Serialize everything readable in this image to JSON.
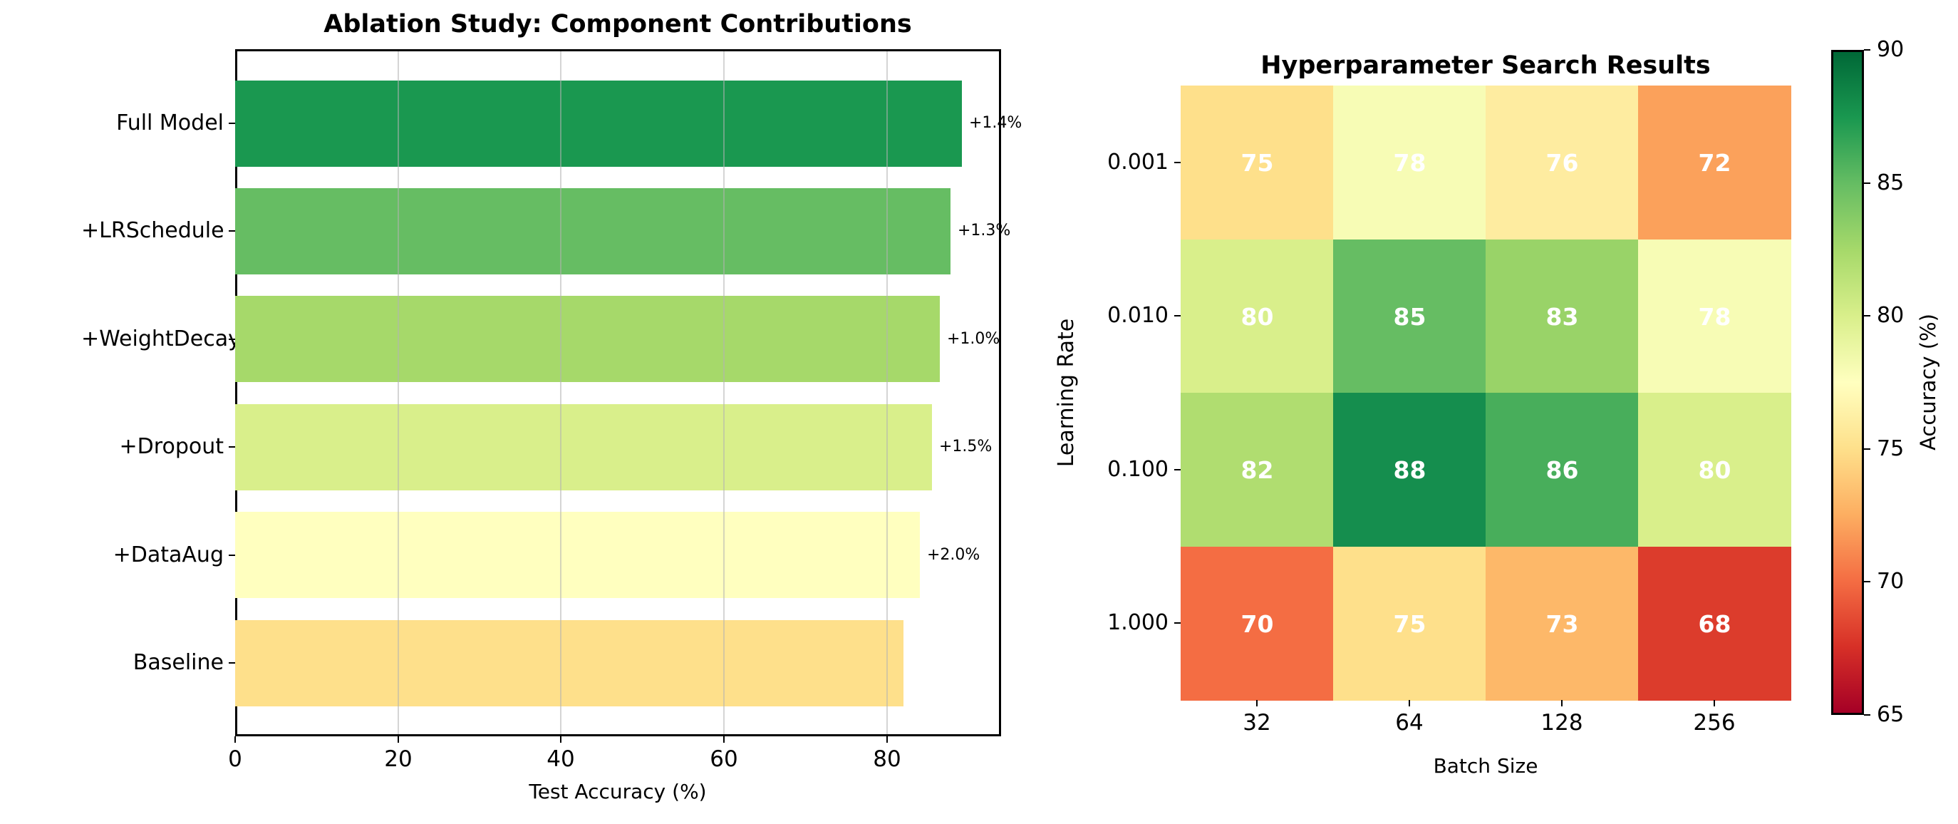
{
  "chart_data": [
    {
      "type": "bar",
      "orientation": "horizontal",
      "title": "Ablation Study: Component Contributions",
      "xlabel": "Test Accuracy (%)",
      "categories": [
        "Full Model",
        "+LRSchedule",
        "+WeightDecay",
        "+Dropout",
        "+DataAug",
        "Baseline"
      ],
      "values": [
        89.2,
        87.8,
        86.5,
        85.5,
        84.0,
        82.0
      ],
      "bar_colors": [
        "#1a9850",
        "#66bd63",
        "#a6d96a",
        "#d9ef8b",
        "#ffffbf",
        "#fee08b"
      ],
      "annotations": [
        "+1.4%",
        "+1.3%",
        "+1.0%",
        "+1.5%",
        "+2.0%",
        ""
      ],
      "xticks": [
        0,
        20,
        40,
        60,
        80
      ],
      "xlim": [
        0,
        94
      ],
      "grid": "vertical-over-bars"
    },
    {
      "type": "heatmap",
      "title": "Hyperparameter Search Results",
      "xlabel": "Batch Size",
      "ylabel": "Learning Rate",
      "x_categories": [
        "32",
        "64",
        "128",
        "256"
      ],
      "y_categories": [
        "0.001",
        "0.010",
        "0.100",
        "1.000"
      ],
      "values": [
        [
          75,
          78,
          76,
          72
        ],
        [
          80,
          85,
          83,
          78
        ],
        [
          82,
          88,
          86,
          80
        ],
        [
          70,
          75,
          73,
          68
        ]
      ],
      "cell_colors": [
        [
          "#fee08b",
          "#f7fcb5",
          "#feeca0",
          "#fba15b"
        ],
        [
          "#d9ef8b",
          "#66bd63",
          "#99d368",
          "#f7fcb5"
        ],
        [
          "#b0dd70",
          "#158e4e",
          "#48ae5b",
          "#d9ef8b"
        ],
        [
          "#f46d43",
          "#fee08b",
          "#fdb869",
          "#dc3c2c"
        ]
      ],
      "value_text_color": "#ffffff",
      "colorbar": {
        "label": "Accuracy (%)",
        "ticks": [
          90,
          85,
          80,
          75,
          70,
          65
        ],
        "vmin": 65,
        "vmax": 90,
        "colormap_bottom_to_top": [
          "#a50026",
          "#d73027",
          "#f46d43",
          "#fdae61",
          "#fee08b",
          "#ffffbf",
          "#d9ef8b",
          "#a6d96a",
          "#66bd63",
          "#1a9850",
          "#006837"
        ]
      }
    }
  ]
}
